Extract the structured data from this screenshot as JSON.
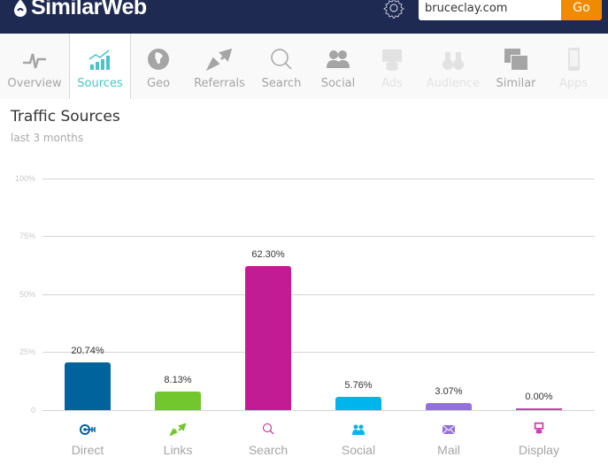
{
  "header": {
    "brand": "SimilarWeb",
    "search_value": "bruceclay.com",
    "go_label": "Go"
  },
  "nav": {
    "items": [
      {
        "label": "Overview",
        "icon": "pulse-icon",
        "state": "normal"
      },
      {
        "label": "Sources",
        "icon": "bar-chart-icon",
        "state": "active"
      },
      {
        "label": "Geo",
        "icon": "globe-icon",
        "state": "normal"
      },
      {
        "label": "Referrals",
        "icon": "arrows-icon",
        "state": "normal"
      },
      {
        "label": "Search",
        "icon": "magnifier-icon",
        "state": "normal"
      },
      {
        "label": "Social",
        "icon": "people-icon",
        "state": "normal"
      },
      {
        "label": "Ads",
        "icon": "ads-icon",
        "state": "disabled"
      },
      {
        "label": "Audience",
        "icon": "binoculars-icon",
        "state": "disabled"
      },
      {
        "label": "Similar",
        "icon": "windows-icon",
        "state": "normal"
      },
      {
        "label": "Apps",
        "icon": "phone-icon",
        "state": "disabled"
      }
    ]
  },
  "section": {
    "title": "Traffic Sources",
    "subtitle": "last 3 months"
  },
  "chart_data": {
    "type": "bar",
    "title": "Traffic Sources",
    "subtitle": "last 3 months",
    "xlabel": "",
    "ylabel": "",
    "ylim": [
      0,
      100
    ],
    "yticks": [
      "0",
      "25%",
      "50%",
      "75%",
      "100%"
    ],
    "grid": true,
    "legend": "none",
    "categories": [
      "Direct",
      "Links",
      "Search",
      "Social",
      "Mail",
      "Display"
    ],
    "values": [
      20.74,
      8.13,
      62.3,
      5.76,
      3.07,
      0.0
    ],
    "value_labels": [
      "20.74%",
      "8.13%",
      "62.30%",
      "5.76%",
      "3.07%",
      "0.00%"
    ],
    "colors": [
      "#00639b",
      "#72c72e",
      "#c11c94",
      "#00b4ee",
      "#9370e0",
      "#c840b0"
    ],
    "icons": [
      "direct-icon",
      "links-icon",
      "search-icon",
      "social-icon",
      "mail-icon",
      "display-icon"
    ]
  }
}
